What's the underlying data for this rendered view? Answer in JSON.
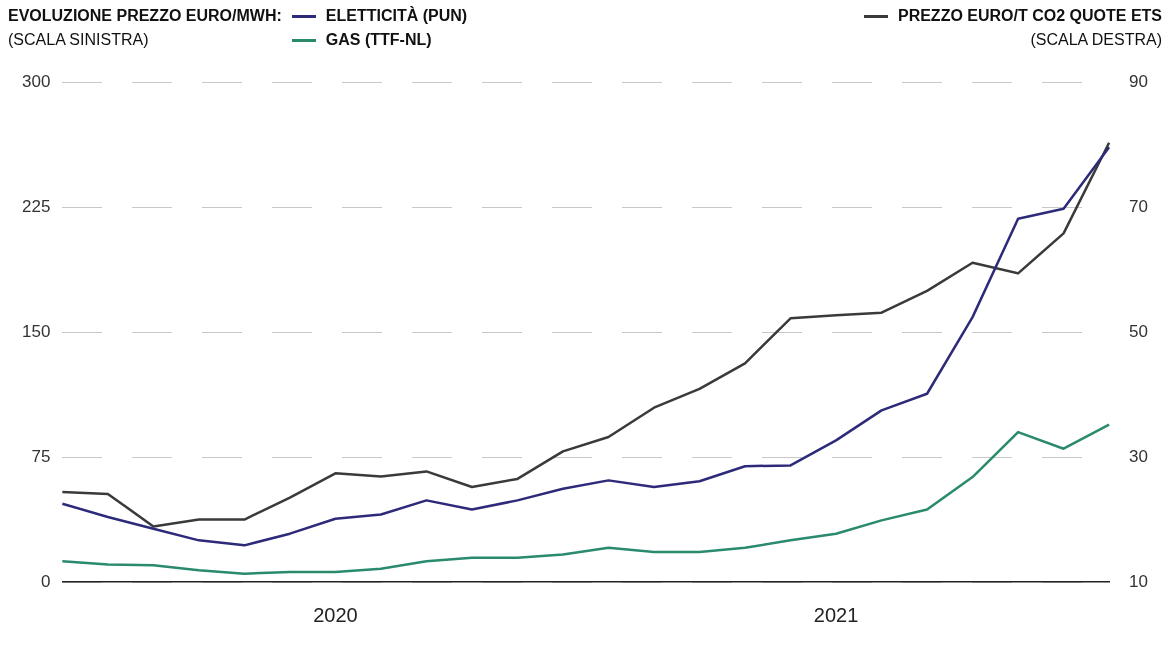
{
  "chart_data": {
    "type": "line",
    "legend_title": "EVOLUZIONE PREZZO EURO/MWH:",
    "ylabel": "(SCALA SINISTRA)",
    "y2label": "(SCALA DESTRA)",
    "categories": [
      null,
      null,
      null,
      null,
      null,
      null,
      "2020",
      null,
      null,
      null,
      null,
      null,
      null,
      null,
      null,
      null,
      null,
      "2021",
      null,
      null,
      null,
      null,
      null,
      null
    ],
    "series": [
      {
        "name": "ELETTICITÀ (PUN)",
        "color": "#2e2a7a",
        "values": [
          47,
          39,
          32,
          25,
          22,
          29,
          38,
          40.5,
          49,
          43.5,
          49,
          56,
          61,
          57,
          60.5,
          69.5,
          70,
          85,
          103,
          113,
          159,
          218,
          224,
          261
        ]
      },
      {
        "name": "GAS (TTF-NL)",
        "color": "#2a8a6e",
        "values": [
          12.5,
          10.5,
          10,
          7,
          5,
          6,
          6,
          8,
          12.5,
          14.5,
          14.5,
          16.5,
          20.5,
          18,
          18,
          20.5,
          25,
          29,
          37,
          43.5,
          63,
          90,
          80,
          94.5
        ]
      },
      {
        "name": "PREZZO EURO/T CO2 QUOTE ETS",
        "color": "#3a3a3a",
        "axis": "y2",
        "values": [
          24.4,
          24.1,
          18.9,
          20,
          20,
          23.5,
          27.4,
          26.9,
          27.7,
          25.2,
          26.5,
          30.9,
          33.2,
          37.9,
          40.9,
          45,
          52.2,
          52.7,
          53.1,
          56.6,
          61.1,
          59.4,
          65.8,
          80.3
        ]
      }
    ],
    "ylim": [
      0,
      300
    ],
    "yticks": [
      0,
      75,
      150,
      225,
      300
    ],
    "y2lim": [
      10,
      90
    ],
    "y2ticks": [
      10,
      30,
      50,
      70,
      90
    ],
    "grid": "y",
    "legend": "top",
    "line_style": "solid"
  }
}
